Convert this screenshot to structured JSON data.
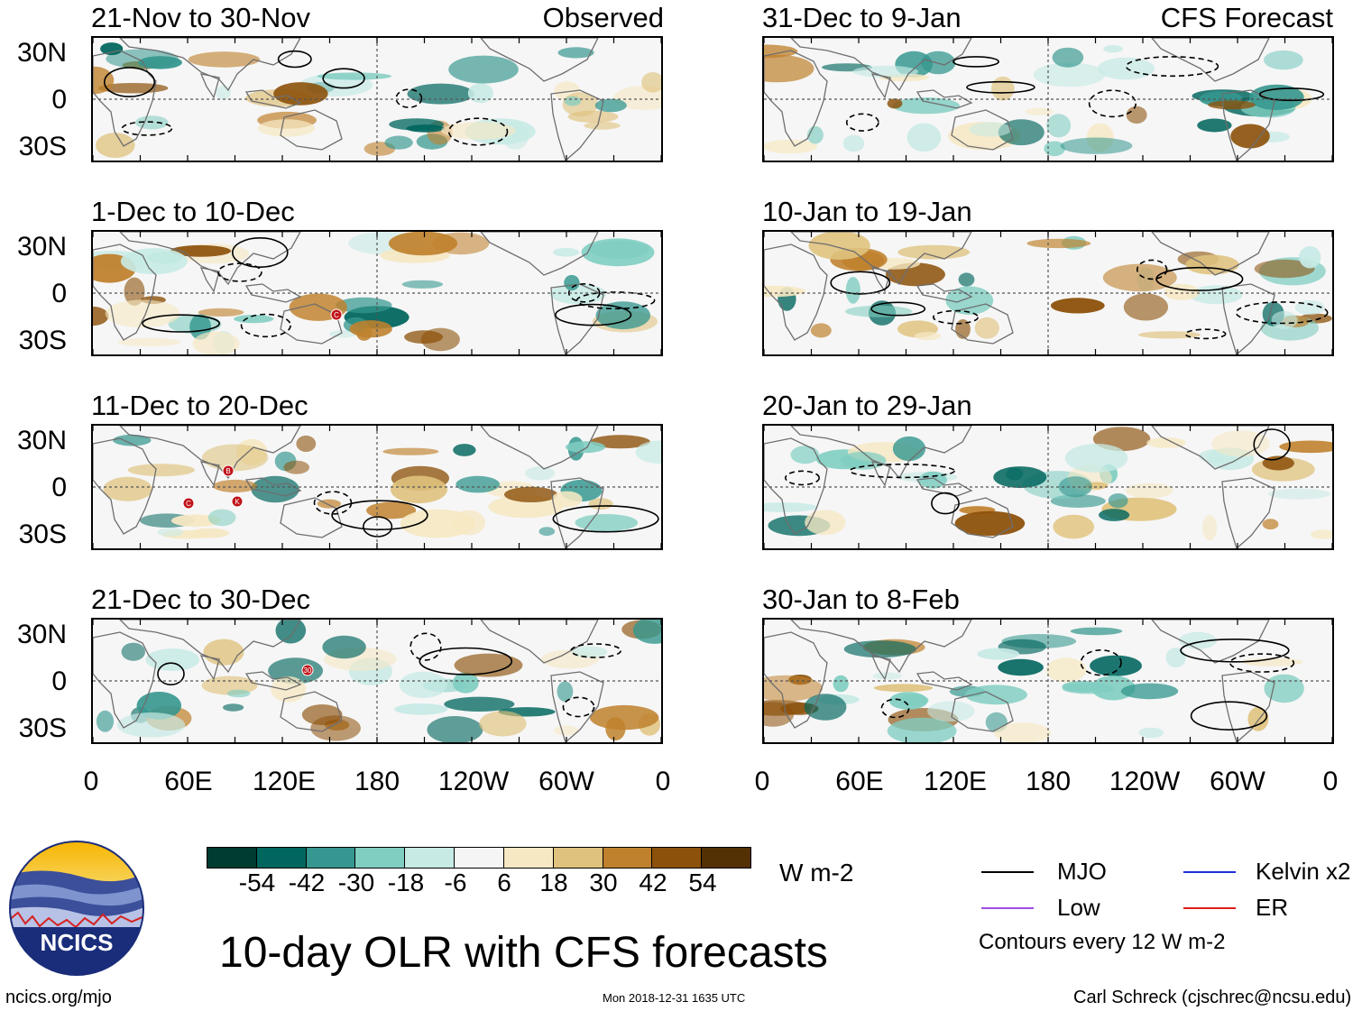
{
  "panels": [
    {
      "title": "21-Nov to 30-Nov",
      "tag": "Observed"
    },
    {
      "title": "31-Dec to 9-Jan",
      "tag": "CFS Forecast"
    },
    {
      "title": "1-Dec to 10-Dec",
      "tag": ""
    },
    {
      "title": "10-Jan to 19-Jan",
      "tag": ""
    },
    {
      "title": "11-Dec to 20-Dec",
      "tag": ""
    },
    {
      "title": "20-Jan to 29-Jan",
      "tag": ""
    },
    {
      "title": "21-Dec to 30-Dec",
      "tag": ""
    },
    {
      "title": "30-Jan to 8-Feb",
      "tag": ""
    }
  ],
  "axes": {
    "lat_labels": [
      "30N",
      "0",
      "30S"
    ],
    "lon_labels": [
      "0",
      "60E",
      "120E",
      "180",
      "120W",
      "60W",
      "0"
    ]
  },
  "colorbar": {
    "colors": [
      "#003c30",
      "#01665e",
      "#35978f",
      "#80cdc1",
      "#c7eae5",
      "#f5f5f5",
      "#f6e8c3",
      "#dfc27d",
      "#bf812d",
      "#8c510a",
      "#543005"
    ],
    "ticks": [
      "-54",
      "-42",
      "-30",
      "-18",
      "-6",
      "6",
      "18",
      "30",
      "42",
      "54"
    ],
    "unit": "W m-2"
  },
  "legend": {
    "items": [
      {
        "label": "MJO",
        "color": "#000000"
      },
      {
        "label": "Kelvin x2",
        "color": "#1f2fd6"
      },
      {
        "label": "Low",
        "color": "#a24ce6"
      },
      {
        "label": "ER",
        "color": "#e01c1c"
      }
    ],
    "note": "Contours every 12 W m-2"
  },
  "title": "10-day OLR with CFS forecasts",
  "logo_text": "NCICS",
  "footer": {
    "left": "ncics.org/mjo",
    "center": "Mon 2018-12-31 1635 UTC",
    "right": "Carl Schreck (cjschrec@ncsu.edu)"
  },
  "storm_markers": [
    "C",
    "B",
    "C",
    "K",
    "30"
  ],
  "palette": {
    "land_outline": "#6e6e6e",
    "neg_anom": "#35978f",
    "pos_anom": "#bf812d",
    "grid": "#555555"
  }
}
